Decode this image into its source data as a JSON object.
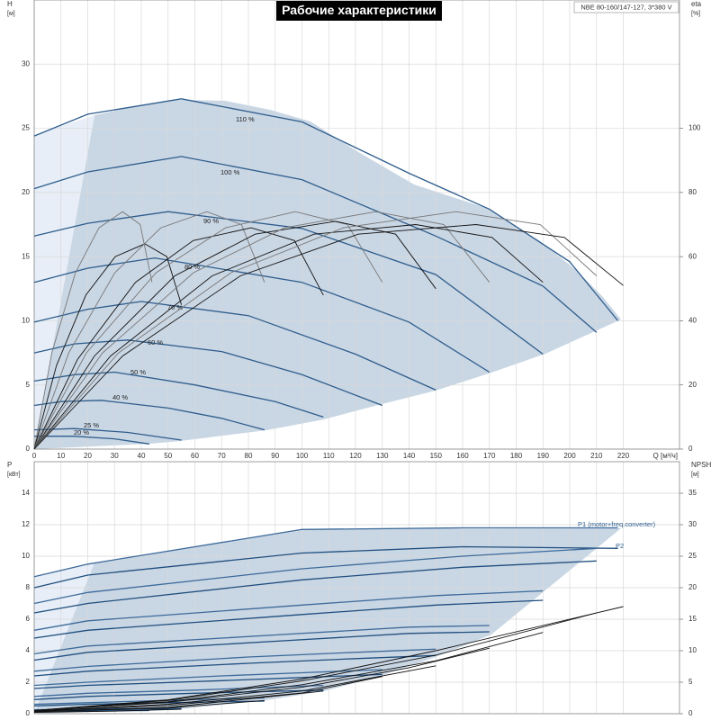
{
  "chart_data": [
    {
      "type": "line",
      "title": "Рабочие характеристики",
      "model": "NBE 80-160/147-127, 3*380 V",
      "ylabel": "H",
      "ylabel_unit": "[м]",
      "y2label": "eta",
      "y2label_unit": "[%]",
      "xlabel": "Q [м³/ч]",
      "xlim": [
        0,
        241
      ],
      "ylim": [
        0,
        35
      ],
      "y2lim": [
        0,
        140
      ],
      "xticks": [
        0,
        10,
        20,
        30,
        40,
        50,
        60,
        70,
        80,
        90,
        100,
        110,
        120,
        130,
        140,
        150,
        160,
        170,
        180,
        190,
        200,
        210,
        220
      ],
      "yticks": [
        0,
        5,
        10,
        15,
        20,
        25,
        30
      ],
      "y2ticks": [
        0,
        20,
        40,
        60,
        80,
        100
      ],
      "grid": true,
      "show_xtick_labels": true,
      "series": [
        {
          "name": "110 %",
          "color": "#2e5d8c",
          "x": [
            0,
            20,
            55,
            100,
            140,
            170,
            200,
            218
          ],
          "values": [
            24.4,
            26.1,
            27.3,
            25.5,
            21.5,
            18.7,
            14.6,
            10.0
          ]
        },
        {
          "name": "100 %",
          "color": "#2e5d8c",
          "x": [
            0,
            20,
            55,
            100,
            150,
            190,
            210
          ],
          "values": [
            20.3,
            21.6,
            22.8,
            21.0,
            16.6,
            12.7,
            9.1
          ]
        },
        {
          "name": "90 %",
          "color": "#2e5d8c",
          "x": [
            0,
            20,
            50,
            100,
            150,
            190
          ],
          "values": [
            16.6,
            17.6,
            18.5,
            17.2,
            13.6,
            7.4
          ]
        },
        {
          "name": "80 %",
          "color": "#2e5d8c",
          "x": [
            0,
            20,
            45,
            100,
            140,
            170
          ],
          "values": [
            13.0,
            14.1,
            14.9,
            13.0,
            9.9,
            6.0
          ]
        },
        {
          "name": "70 %",
          "color": "#2e5d8c",
          "x": [
            0,
            20,
            40,
            80,
            120,
            150
          ],
          "values": [
            9.9,
            10.9,
            11.5,
            10.4,
            7.4,
            4.6
          ]
        },
        {
          "name": "60 %",
          "color": "#2e5d8c",
          "x": [
            0,
            15,
            35,
            70,
            100,
            130
          ],
          "values": [
            7.5,
            8.2,
            8.5,
            7.6,
            5.8,
            3.4
          ]
        },
        {
          "name": "50 %",
          "color": "#2e5d8c",
          "x": [
            0,
            15,
            30,
            60,
            90,
            108
          ],
          "values": [
            5.3,
            5.8,
            6.0,
            5.0,
            3.7,
            2.5
          ]
        },
        {
          "name": "40 %",
          "color": "#2e5d8c",
          "x": [
            0,
            10,
            25,
            50,
            70,
            86
          ],
          "values": [
            3.4,
            3.7,
            3.8,
            3.2,
            2.4,
            1.5
          ]
        },
        {
          "name": "25 %",
          "color": "#2e5d8c",
          "x": [
            0,
            15,
            35,
            55
          ],
          "values": [
            1.5,
            1.6,
            1.3,
            0.7
          ]
        },
        {
          "name": "20 %",
          "color": "#2e5d8c",
          "x": [
            0,
            15,
            30,
            43
          ],
          "values": [
            1.0,
            1.0,
            0.8,
            0.4
          ]
        },
        {
          "axis": "y2",
          "color": "#777777",
          "x": [
            0,
            6.6,
            15.4,
            24.2,
            33,
            39.6,
            44
          ],
          "values": [
            0,
            30,
            55,
            69,
            74,
            70,
            52
          ]
        },
        {
          "axis": "y2",
          "color": "#111111",
          "x": [
            0,
            8.3,
            19.3,
            30.3,
            41.3,
            49.5,
            55
          ],
          "values": [
            0,
            26,
            48,
            60,
            64,
            60,
            45
          ]
        },
        {
          "axis": "y2",
          "color": "#777777",
          "x": [
            0,
            12.9,
            30.1,
            47.3,
            64.5,
            77.4,
            86
          ],
          "values": [
            0,
            30,
            55,
            69,
            74,
            70,
            52
          ]
        },
        {
          "axis": "y2",
          "color": "#111111",
          "x": [
            0,
            16.2,
            37.8,
            59.4,
            81,
            97.2,
            108
          ],
          "values": [
            0,
            28,
            52,
            65,
            69,
            65,
            48
          ]
        },
        {
          "axis": "y2",
          "color": "#777777",
          "x": [
            0,
            19.5,
            45.5,
            71.5,
            97.5,
            117,
            130
          ],
          "values": [
            0,
            30,
            55,
            69,
            74,
            70,
            52
          ]
        },
        {
          "axis": "y2",
          "color": "#111111",
          "x": [
            0,
            22.5,
            52.5,
            82.5,
            112.5,
            135,
            150
          ],
          "values": [
            0,
            29,
            54,
            67,
            71,
            67,
            50
          ]
        },
        {
          "axis": "y2",
          "color": "#777777",
          "x": [
            0,
            25.5,
            59.5,
            93.5,
            127.5,
            153,
            170
          ],
          "values": [
            0,
            30,
            55,
            69,
            74,
            70,
            52
          ]
        },
        {
          "axis": "y2",
          "color": "#111111",
          "x": [
            0,
            28.5,
            66.5,
            104.5,
            142.5,
            171,
            190
          ],
          "values": [
            0,
            29,
            54,
            67,
            70,
            66,
            52
          ]
        },
        {
          "axis": "y2",
          "color": "#777777",
          "x": [
            0,
            31.5,
            73.5,
            115.5,
            157.5,
            189,
            210
          ],
          "values": [
            0,
            30,
            55,
            69,
            74,
            70,
            54
          ]
        },
        {
          "axis": "y2",
          "color": "#111111",
          "x": [
            0,
            33,
            77,
            121,
            165,
            198,
            220
          ],
          "values": [
            0,
            29,
            54,
            67,
            70,
            66,
            51
          ]
        }
      ]
    },
    {
      "type": "line",
      "ylabel": "P",
      "ylabel_unit": "[кВт]",
      "y2label": "NPSH",
      "y2label_unit": "[м]",
      "xlim": [
        0,
        241
      ],
      "ylim": [
        0,
        16
      ],
      "y2lim": [
        0,
        40
      ],
      "xticks": [
        0,
        10,
        20,
        30,
        40,
        50,
        60,
        70,
        80,
        90,
        100,
        110,
        120,
        130,
        140,
        150,
        160,
        170,
        180,
        190,
        200,
        210,
        220
      ],
      "yticks": [
        0,
        2,
        4,
        6,
        8,
        10,
        12,
        14
      ],
      "y2ticks": [
        0,
        5,
        10,
        15,
        20,
        25,
        30,
        35
      ],
      "grid": true,
      "show_xtick_labels": false,
      "series": [
        {
          "name": "P1 (motor+freq.converter)",
          "color": "#3d6a9a",
          "x": [
            0,
            20,
            100,
            160,
            218
          ],
          "values": [
            8.7,
            9.5,
            11.7,
            11.8,
            11.8
          ]
        },
        {
          "name": "P2",
          "color": "#1f4e7e",
          "x": [
            0,
            20,
            100,
            160,
            218
          ],
          "values": [
            8.0,
            8.8,
            10.2,
            10.6,
            10.5
          ]
        },
        {
          "color": "#3d6a9a",
          "x": [
            0,
            20,
            100,
            160,
            210
          ],
          "values": [
            7.0,
            7.7,
            9.2,
            10.0,
            10.5
          ]
        },
        {
          "color": "#1f4e7e",
          "x": [
            0,
            20,
            100,
            160,
            210
          ],
          "values": [
            6.4,
            7.0,
            8.5,
            9.3,
            9.7
          ]
        },
        {
          "color": "#3d6a9a",
          "x": [
            0,
            20,
            100,
            150,
            190
          ],
          "values": [
            5.3,
            5.9,
            6.9,
            7.5,
            7.8
          ]
        },
        {
          "color": "#1f4e7e",
          "x": [
            0,
            20,
            100,
            150,
            190
          ],
          "values": [
            4.8,
            5.3,
            6.3,
            6.9,
            7.2
          ]
        },
        {
          "color": "#3d6a9a",
          "x": [
            0,
            20,
            90,
            140,
            170
          ],
          "values": [
            3.8,
            4.3,
            5.0,
            5.5,
            5.6
          ]
        },
        {
          "color": "#1f4e7e",
          "x": [
            0,
            20,
            90,
            140,
            170
          ],
          "values": [
            3.4,
            3.9,
            4.6,
            5.1,
            5.2
          ]
        },
        {
          "color": "#3d6a9a",
          "x": [
            0,
            20,
            80,
            120,
            150
          ],
          "values": [
            2.7,
            3.0,
            3.6,
            3.9,
            4.1
          ]
        },
        {
          "color": "#1f4e7e",
          "x": [
            0,
            20,
            80,
            120,
            150
          ],
          "values": [
            2.4,
            2.7,
            3.2,
            3.5,
            3.7
          ]
        },
        {
          "color": "#3d6a9a",
          "x": [
            0,
            20,
            70,
            100,
            130
          ],
          "values": [
            1.8,
            2.0,
            2.4,
            2.6,
            2.8
          ]
        },
        {
          "color": "#1f4e7e",
          "x": [
            0,
            20,
            70,
            100,
            130
          ],
          "values": [
            1.6,
            1.8,
            2.1,
            2.3,
            2.5
          ]
        },
        {
          "color": "#3d6a9a",
          "x": [
            0,
            20,
            60,
            108
          ],
          "values": [
            1.1,
            1.3,
            1.5,
            1.8
          ]
        },
        {
          "color": "#1f4e7e",
          "x": [
            0,
            20,
            60,
            108
          ],
          "values": [
            0.9,
            1.1,
            1.3,
            1.5
          ]
        },
        {
          "color": "#3d6a9a",
          "x": [
            0,
            20,
            50,
            86
          ],
          "values": [
            0.6,
            0.7,
            0.85,
            1.0
          ]
        },
        {
          "color": "#1f4e7e",
          "x": [
            0,
            20,
            50,
            86
          ],
          "values": [
            0.5,
            0.6,
            0.7,
            0.8
          ]
        },
        {
          "color": "#3d6a9a",
          "x": [
            0,
            20,
            55
          ],
          "values": [
            0.25,
            0.3,
            0.35
          ]
        },
        {
          "color": "#1f4e7e",
          "x": [
            0,
            20,
            55
          ],
          "values": [
            0.2,
            0.25,
            0.3
          ]
        },
        {
          "color": "#3d6a9a",
          "x": [
            0,
            20,
            43
          ],
          "values": [
            0.2,
            0.22,
            0.25
          ]
        },
        {
          "color": "#1f4e7e",
          "x": [
            0,
            20,
            43
          ],
          "values": [
            0.15,
            0.18,
            0.2
          ]
        },
        {
          "axis": "y2",
          "color": "#111111",
          "x": [
            0,
            50,
            100,
            150,
            220
          ],
          "values": [
            0.5,
            2.2,
            5.5,
            10,
            17
          ]
        },
        {
          "axis": "y2",
          "color": "#111111",
          "x": [
            0,
            50,
            100,
            150,
            210
          ],
          "values": [
            0.5,
            2.1,
            5.2,
            9.3,
            16
          ]
        },
        {
          "axis": "y2",
          "color": "#111111",
          "x": [
            0,
            50,
            100,
            150,
            190
          ],
          "values": [
            0.5,
            1.9,
            4.6,
            8.4,
            12.9
          ]
        },
        {
          "axis": "y2",
          "color": "#111111",
          "x": [
            0,
            50,
            100,
            140,
            170
          ],
          "values": [
            0.5,
            1.8,
            4.2,
            7.3,
            10.4
          ]
        },
        {
          "axis": "y2",
          "color": "#111111",
          "x": [
            0,
            50,
            100,
            150
          ],
          "values": [
            0.4,
            1.5,
            3.6,
            7.6
          ]
        },
        {
          "axis": "y2",
          "color": "#111111",
          "x": [
            0,
            50,
            100,
            130
          ],
          "values": [
            0.4,
            1.3,
            3.3,
            5.9
          ]
        },
        {
          "axis": "y2",
          "color": "#111111",
          "x": [
            0,
            50,
            108
          ],
          "values": [
            0.3,
            1.0,
            3.6
          ]
        },
        {
          "axis": "y2",
          "color": "#111111",
          "x": [
            0,
            50,
            86
          ],
          "values": [
            0.3,
            0.9,
            2.1
          ]
        },
        {
          "axis": "y2",
          "color": "#111111",
          "x": [
            0,
            30,
            55
          ],
          "values": [
            0.2,
            0.4,
            0.7
          ]
        }
      ]
    }
  ]
}
